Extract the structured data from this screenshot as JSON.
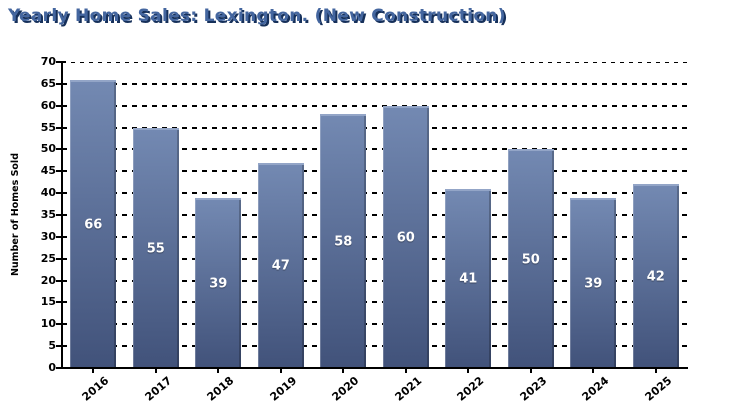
{
  "chart_data": {
    "type": "bar",
    "title": "Yearly Home Sales: Lexington. (New Construction)",
    "ylabel": "Number of Homes Sold",
    "xlabel": "",
    "categories": [
      "2016",
      "2017",
      "2018",
      "2019",
      "2020",
      "2021",
      "2022",
      "2023",
      "2024",
      "2025"
    ],
    "values": [
      66,
      55,
      39,
      47,
      58,
      60,
      41,
      50,
      39,
      42
    ],
    "ylim": [
      0,
      70
    ],
    "ytick_step": 5,
    "grid": "horizontal dashed black",
    "legend": "none",
    "value_label_style": "white bold, centered inside bar",
    "x_label_rotation_deg": -40
  },
  "colors": {
    "title": "#44669f",
    "title_shadow": "#16305a",
    "bar_top": "#7389b2",
    "bar_bottom": "#41527a",
    "bar_highlight": "#93a5c7",
    "value_label": "#ffffff",
    "axis": "#000000",
    "grid": "#000000",
    "background": "#ffffff"
  }
}
